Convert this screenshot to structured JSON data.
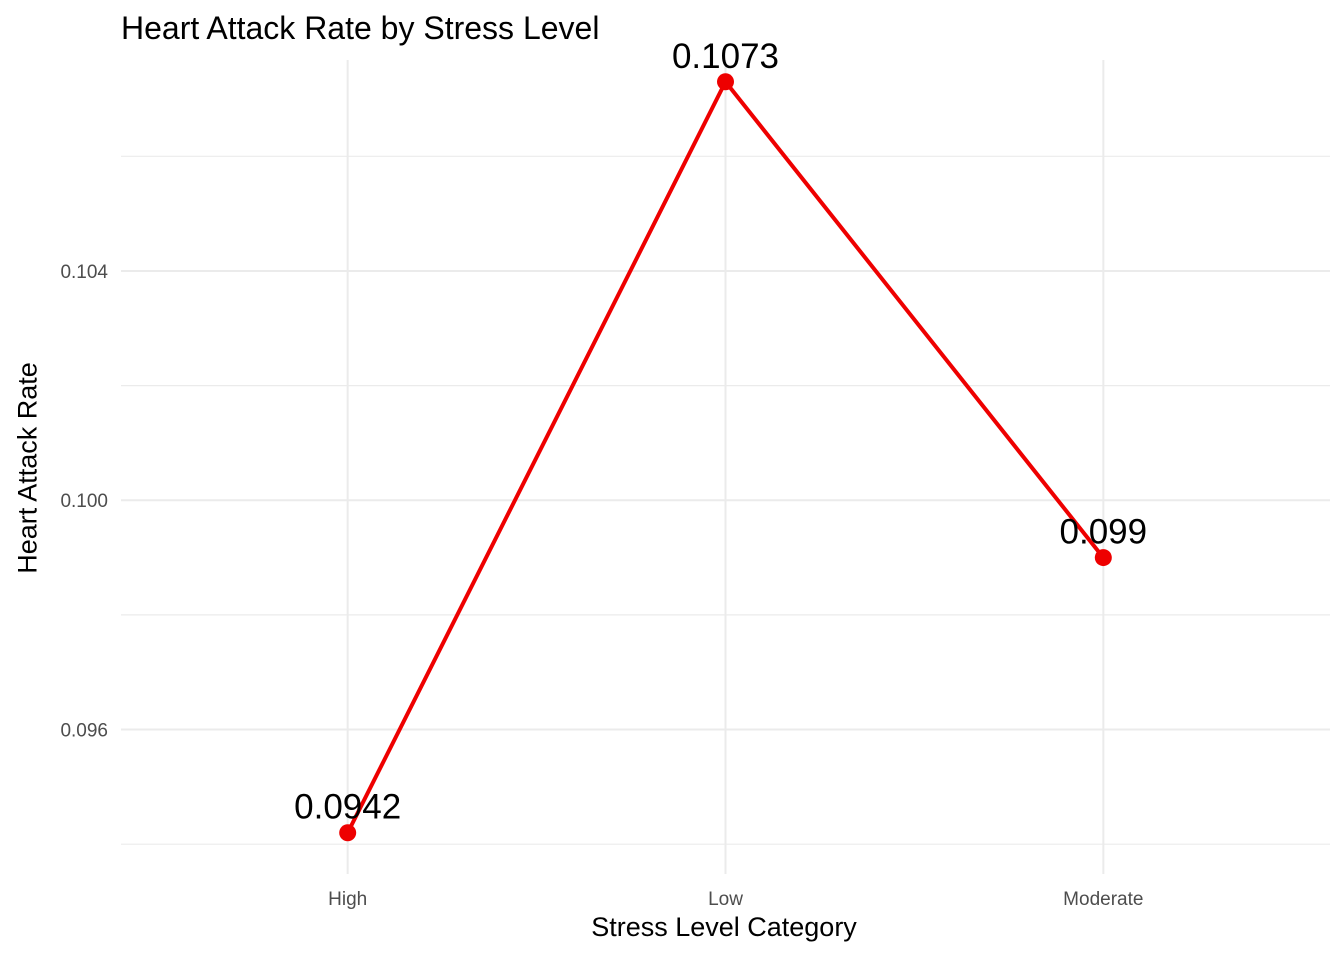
{
  "chart_data": {
    "type": "line",
    "title": "Heart Attack Rate by Stress Level",
    "xlabel": "Stress Level Category",
    "ylabel": "Heart Attack Rate",
    "categories": [
      "High",
      "Low",
      "Moderate"
    ],
    "values": [
      0.0942,
      0.1073,
      0.099
    ],
    "data_labels": [
      "0.0942",
      "0.1073",
      "0.099"
    ],
    "y_ticks": [
      0.096,
      0.1,
      0.104
    ],
    "y_tick_labels": [
      "0.096",
      "0.100",
      "0.104"
    ],
    "y_minor_ticks": [
      0.094,
      0.098,
      0.102,
      0.106
    ],
    "ylim": [
      0.09348,
      0.10768
    ],
    "grid": true,
    "legend": "none",
    "colors": {
      "line": "#ee0000",
      "point": "#ee0000",
      "grid": "#ebebeb",
      "tick_label": "#4d4d4d"
    }
  }
}
